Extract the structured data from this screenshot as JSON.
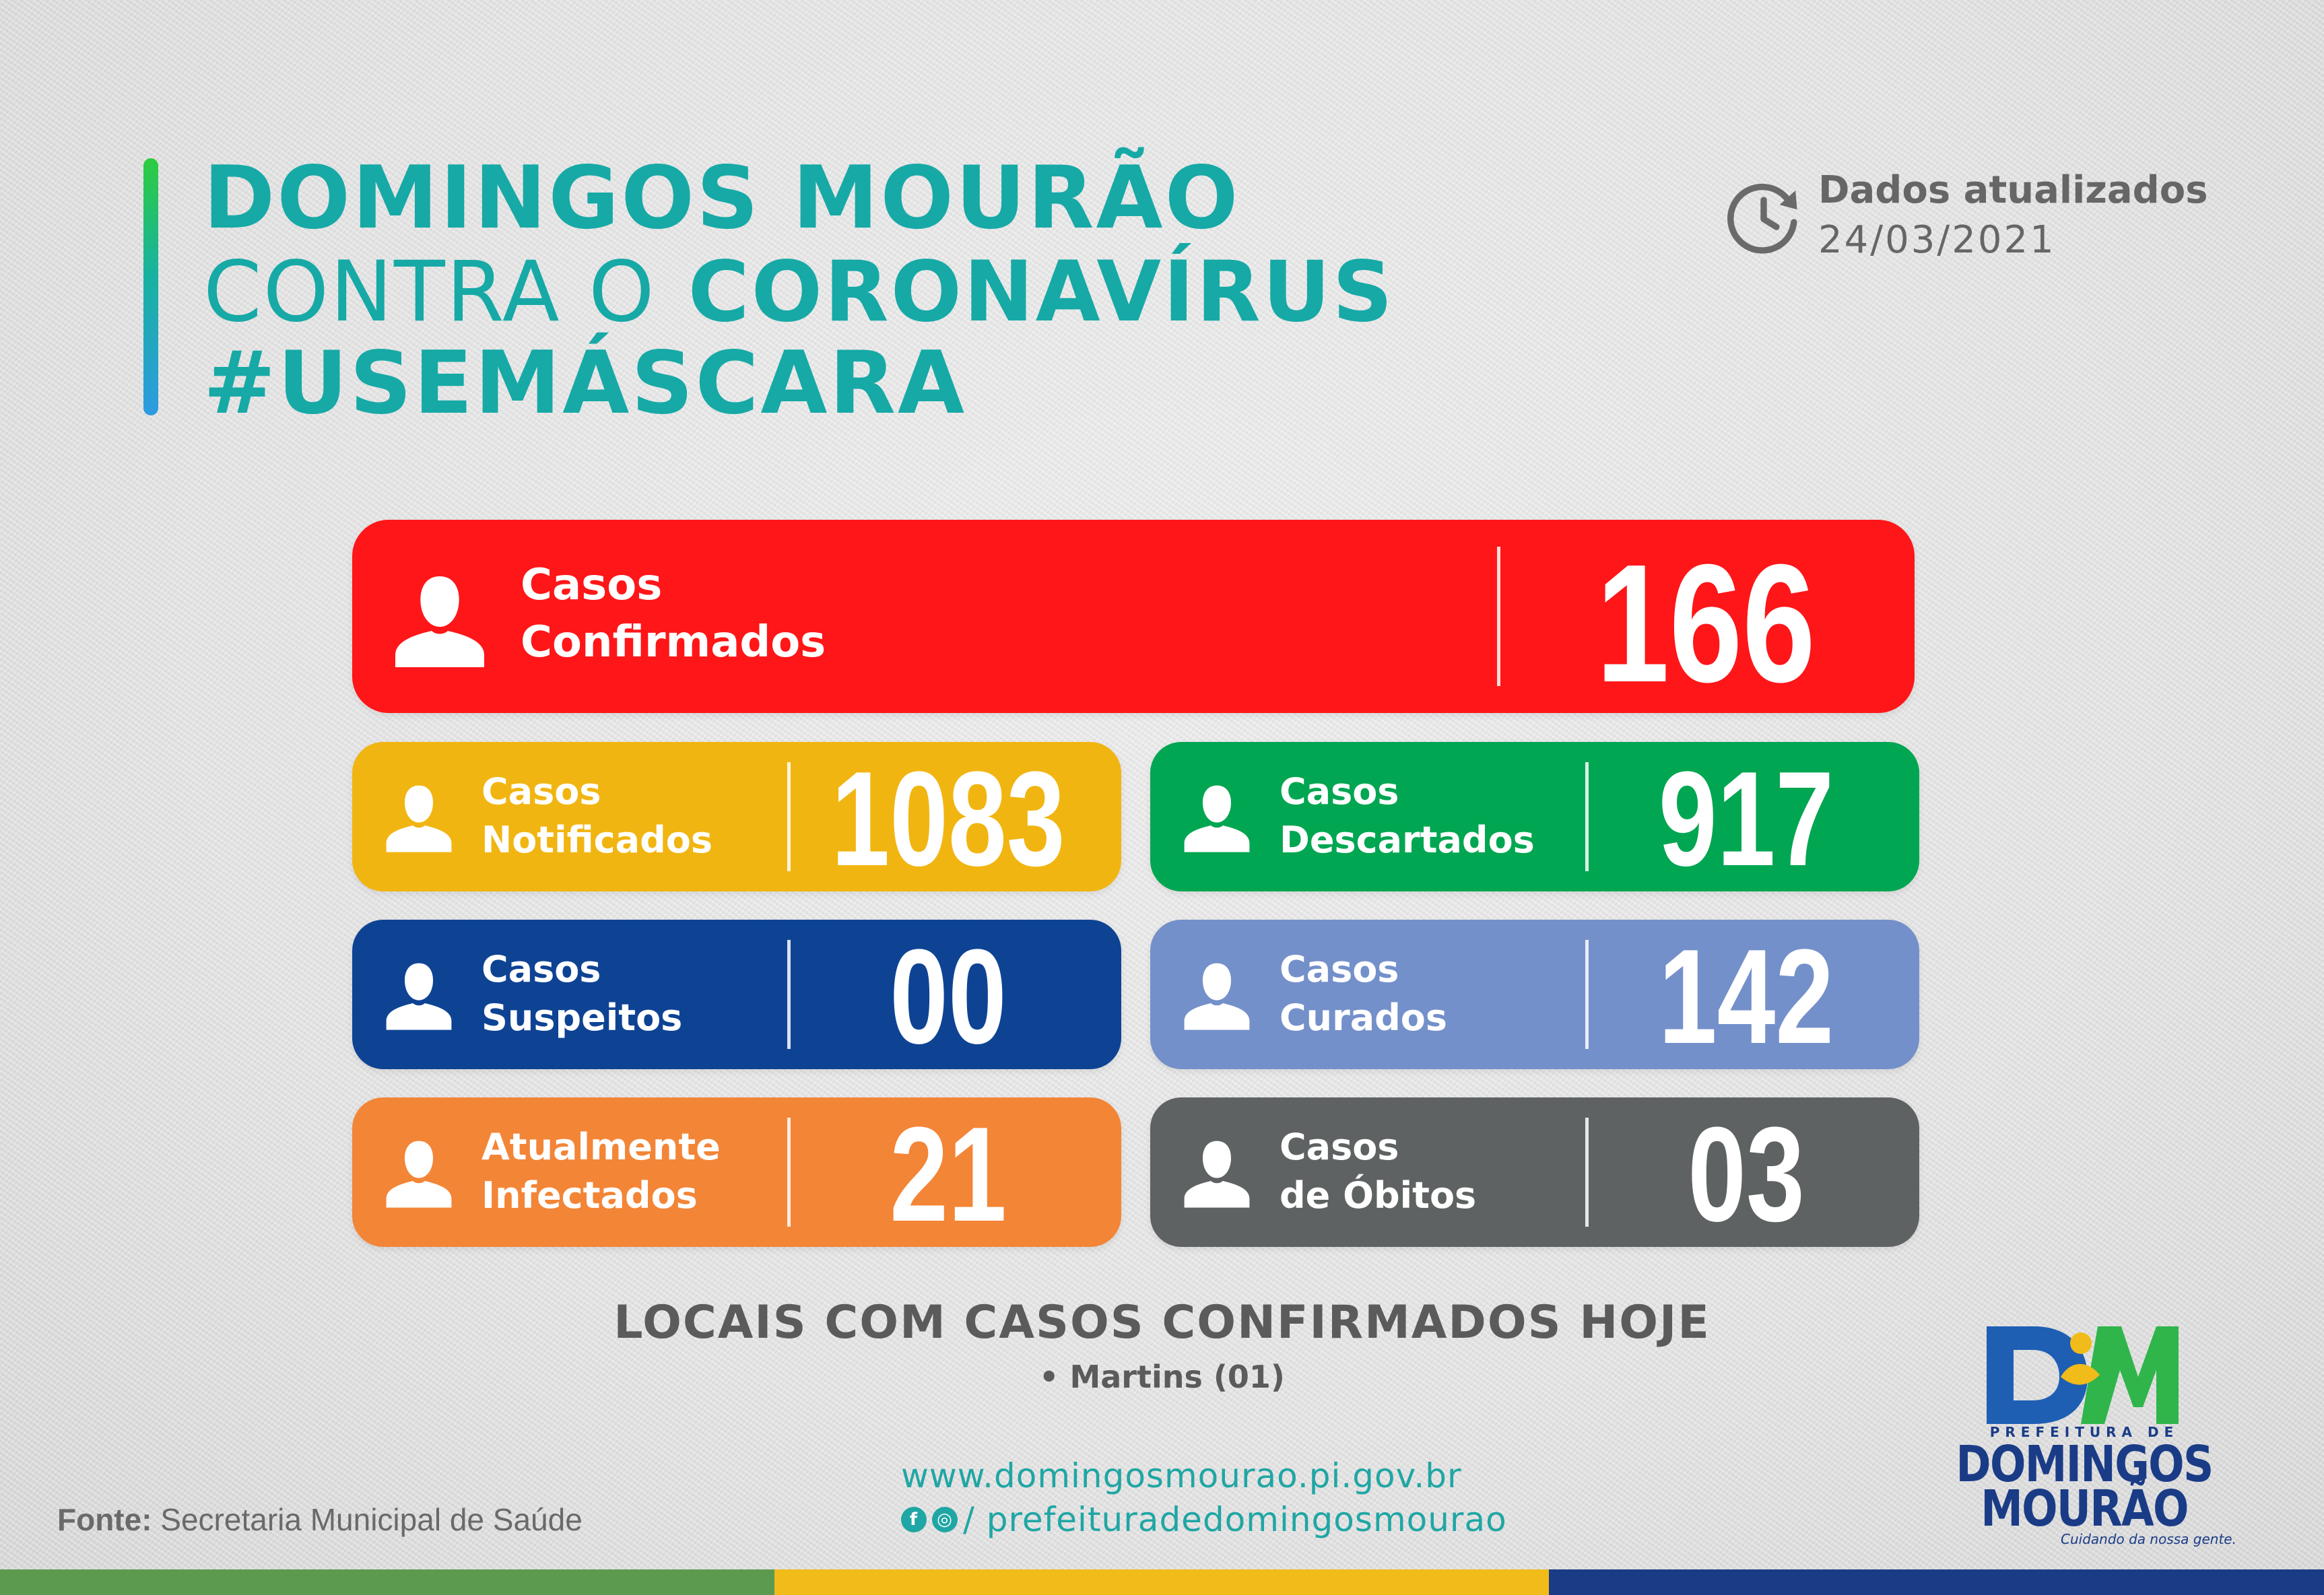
{
  "header": {
    "title_line1": "DOMINGOS MOURÃO",
    "title_line2_light": "CONTRA O",
    "title_line2_bold": "CORONAVÍRUS",
    "hashtag": "#USEMÁSCARA",
    "updated_label": "Dados atualizados",
    "updated_date": "24/03/2021"
  },
  "cards": {
    "confirmados": {
      "line1": "Casos",
      "line2": "Confirmados",
      "value": "166",
      "color": "#fe1619"
    },
    "notificados": {
      "line1": "Casos",
      "line2": "Notificados",
      "value": "1083",
      "color": "#f1b512"
    },
    "descartados": {
      "line1": "Casos",
      "line2": "Descartados",
      "value": "917",
      "color": "#00a651"
    },
    "suspeitos": {
      "line1": "Casos",
      "line2": "Suspeitos",
      "value": "00",
      "color": "#0e4394"
    },
    "curados": {
      "line1": "Casos",
      "line2": "Curados",
      "value": "142",
      "color": "#7490ca"
    },
    "infectados": {
      "line1": "Atualmente",
      "line2": "Infectados",
      "value": "21",
      "color": "#f38537"
    },
    "obitos": {
      "line1": "Casos",
      "line2": "de Óbitos",
      "value": "03",
      "color": "#5e6262"
    }
  },
  "locais": {
    "title": "LOCAIS COM CASOS CONFIRMADOS HOJE",
    "items": [
      "• Martins (01)"
    ]
  },
  "footer": {
    "fonte_label": "Fonte:",
    "fonte_text": "Secretaria Municipal de Saúde",
    "website": "www.domingosmourao.pi.gov.br",
    "social_handle": "/ prefeituradedomingosmourao",
    "icons": [
      "facebook-icon",
      "instagram-icon",
      "clock-icon",
      "person-icon"
    ]
  },
  "logo": {
    "prefix": "PREFEITURA DE",
    "name_line1": "DOMINGOS",
    "name_line2": "MOURÃO",
    "slogan": "Cuidando da nossa gente."
  },
  "colors": {
    "teal": "#16a9a6",
    "stripe_green": "#5c9b4f",
    "stripe_yellow": "#f1bb1a",
    "stripe_blue": "#1a3c87"
  }
}
